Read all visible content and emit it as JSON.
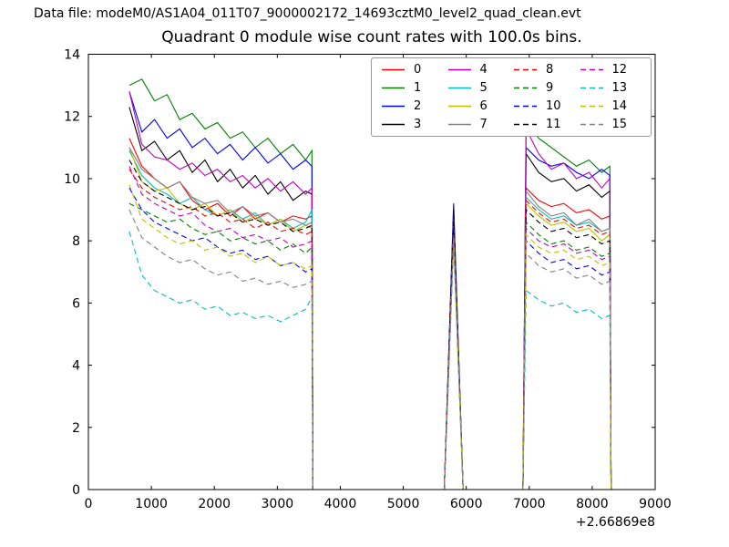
{
  "chart_data": {
    "type": "line",
    "suptitle": "Data file: modeM0/AS1A04_011T07_9000002172_14693cztM0_level2_quad_clean.evt",
    "title": "Quadrant 0 module wise count rates with 100.0s bins.",
    "xlabel": "",
    "ylabel": "",
    "xlim": [
      0,
      9000
    ],
    "ylim": [
      0,
      14
    ],
    "x_ticks": [
      0,
      1000,
      2000,
      3000,
      4000,
      5000,
      6000,
      7000,
      8000,
      9000
    ],
    "y_ticks": [
      0,
      2,
      4,
      6,
      8,
      10,
      12,
      14
    ],
    "x_offset_text": "+2.66869e8",
    "grid": false,
    "legend_position": "upper right inside, 4 columns",
    "bin_seconds": 100.0,
    "segments": {
      "seg1_x": [
        650,
        850,
        1050,
        1250,
        1450,
        1650,
        1850,
        2050,
        2250,
        2450,
        2650,
        2850,
        3050,
        3250,
        3450,
        3550
      ],
      "seg1_drop_x": 3565,
      "peak_x": [
        5650,
        5800,
        5950
      ],
      "seg3_rise_x": 6900,
      "seg3_x": [
        6950,
        7150,
        7350,
        7550,
        7750,
        7950,
        8150,
        8280
      ],
      "seg3_drop_x": 8300,
      "zero_spans": [
        [
          3565,
          5650
        ],
        [
          5950,
          6900
        ]
      ]
    },
    "series": [
      {
        "label": "0",
        "color": "#ff0000",
        "linestyle": "solid",
        "seg1": [
          11.3,
          10.4,
          10.0,
          9.7,
          9.9,
          9.3,
          9.0,
          9.2,
          8.8,
          9.1,
          8.7,
          8.9,
          8.6,
          8.8,
          8.7,
          8.8
        ],
        "peak": 8.7,
        "seg3": [
          9.7,
          9.3,
          9.1,
          9.2,
          8.9,
          9.0,
          8.7,
          8.8
        ]
      },
      {
        "label": "1",
        "color": "#007f00",
        "linestyle": "solid",
        "seg1": [
          13.0,
          13.2,
          12.5,
          12.7,
          11.9,
          12.1,
          11.6,
          11.8,
          11.3,
          11.5,
          11.0,
          11.3,
          10.8,
          11.1,
          10.6,
          10.9
        ],
        "peak": 8.9,
        "seg3": [
          11.8,
          11.3,
          11.0,
          10.7,
          10.4,
          10.6,
          10.2,
          10.4
        ]
      },
      {
        "label": "2",
        "color": "#0000ff",
        "linestyle": "solid",
        "seg1": [
          12.8,
          11.5,
          11.9,
          11.3,
          11.6,
          11.0,
          11.3,
          10.8,
          11.1,
          10.6,
          11.0,
          10.5,
          10.8,
          10.3,
          10.6,
          10.4
        ],
        "peak": 9.2,
        "seg3": [
          11.0,
          10.6,
          10.4,
          10.5,
          10.2,
          10.0,
          10.3,
          10.1
        ]
      },
      {
        "label": "3",
        "color": "#000000",
        "linestyle": "solid",
        "seg1": [
          12.3,
          10.9,
          11.2,
          10.6,
          10.9,
          10.2,
          10.6,
          9.9,
          10.3,
          9.7,
          10.1,
          9.5,
          9.9,
          9.3,
          9.6,
          9.5
        ],
        "peak": 9.0,
        "seg3": [
          10.8,
          10.2,
          9.9,
          10.0,
          9.6,
          9.8,
          9.4,
          9.6
        ]
      },
      {
        "label": "4",
        "color": "#bf00bf",
        "linestyle": "solid",
        "seg1": [
          12.8,
          11.1,
          10.7,
          10.6,
          10.3,
          10.5,
          10.1,
          10.3,
          9.9,
          10.1,
          9.7,
          10.0,
          9.6,
          9.9,
          9.5,
          9.7
        ],
        "peak": 8.8,
        "seg3": [
          11.6,
          10.8,
          10.3,
          10.5,
          10.0,
          10.2,
          9.7,
          10.0
        ]
      },
      {
        "label": "5",
        "color": "#00bfbf",
        "linestyle": "solid",
        "seg1": [
          10.9,
          10.1,
          9.7,
          9.5,
          9.2,
          9.4,
          9.0,
          8.8,
          9.0,
          8.7,
          8.9,
          8.5,
          8.7,
          8.4,
          8.6,
          9.0
        ],
        "peak": 8.6,
        "seg3": [
          9.4,
          9.0,
          8.7,
          8.8,
          8.5,
          8.6,
          8.3,
          8.4
        ]
      },
      {
        "label": "6",
        "color": "#bfbf00",
        "linestyle": "solid",
        "seg1": [
          11.0,
          9.9,
          9.6,
          9.7,
          9.2,
          9.0,
          9.2,
          8.8,
          9.0,
          8.6,
          8.8,
          8.5,
          8.7,
          8.3,
          8.5,
          8.4
        ],
        "peak": 8.5,
        "seg3": [
          9.2,
          8.8,
          8.5,
          8.6,
          8.3,
          8.4,
          8.0,
          8.2
        ]
      },
      {
        "label": "7",
        "color": "#808080",
        "linestyle": "solid",
        "seg1": [
          11.0,
          10.3,
          10.0,
          9.7,
          9.9,
          9.4,
          9.2,
          9.3,
          8.9,
          9.1,
          8.8,
          8.9,
          8.6,
          8.7,
          8.5,
          8.6
        ],
        "peak": 8.7,
        "seg3": [
          9.6,
          9.1,
          8.8,
          8.9,
          8.5,
          8.7,
          8.3,
          8.4
        ]
      },
      {
        "label": "8",
        "color": "#ff0000",
        "linestyle": "dashed",
        "seg1": [
          10.3,
          9.7,
          9.4,
          9.2,
          9.0,
          9.1,
          8.8,
          8.9,
          8.6,
          8.7,
          8.4,
          8.6,
          8.3,
          8.4,
          8.2,
          8.3
        ],
        "peak": 8.4,
        "seg3": [
          9.3,
          8.9,
          8.6,
          8.7,
          8.4,
          8.5,
          8.2,
          8.3
        ]
      },
      {
        "label": "9",
        "color": "#007f00",
        "linestyle": "dashed",
        "seg1": [
          9.2,
          9.0,
          8.8,
          8.6,
          8.7,
          8.4,
          8.2,
          8.3,
          8.0,
          8.1,
          7.9,
          8.0,
          7.7,
          7.9,
          7.6,
          7.8
        ],
        "peak": 8.3,
        "seg3": [
          8.6,
          8.2,
          7.9,
          8.0,
          7.7,
          7.8,
          7.5,
          7.6
        ]
      },
      {
        "label": "10",
        "color": "#0000ff",
        "linestyle": "dashed",
        "seg1": [
          9.7,
          9.0,
          8.6,
          8.4,
          8.2,
          8.0,
          8.1,
          7.8,
          7.6,
          7.7,
          7.4,
          7.5,
          7.2,
          7.3,
          7.0,
          7.1
        ],
        "peak": 8.6,
        "seg3": [
          8.0,
          7.6,
          7.3,
          7.4,
          7.1,
          7.2,
          6.9,
          7.0
        ]
      },
      {
        "label": "11",
        "color": "#000000",
        "linestyle": "dashed",
        "seg1": [
          10.6,
          9.9,
          9.6,
          9.4,
          9.2,
          9.0,
          9.1,
          8.8,
          8.9,
          8.6,
          8.7,
          8.5,
          8.6,
          8.3,
          8.4,
          8.5
        ],
        "peak": 8.8,
        "seg3": [
          9.0,
          8.6,
          8.3,
          8.4,
          8.1,
          8.2,
          7.9,
          8.0
        ]
      },
      {
        "label": "12",
        "color": "#bf00bf",
        "linestyle": "dashed",
        "seg1": [
          10.4,
          9.5,
          9.2,
          9.0,
          8.8,
          8.9,
          8.5,
          8.3,
          8.4,
          8.1,
          8.2,
          8.0,
          8.1,
          7.8,
          7.9,
          8.0
        ],
        "peak": 8.2,
        "seg3": [
          8.4,
          8.0,
          7.8,
          7.9,
          7.6,
          7.7,
          7.4,
          7.5
        ]
      },
      {
        "label": "13",
        "color": "#00bfbf",
        "linestyle": "dashed",
        "seg1": [
          8.3,
          6.9,
          6.4,
          6.2,
          6.0,
          6.1,
          5.8,
          5.9,
          5.6,
          5.7,
          5.5,
          5.6,
          5.4,
          5.6,
          5.8,
          6.2
        ],
        "peak": 7.9,
        "seg3": [
          6.4,
          6.1,
          5.9,
          6.0,
          5.7,
          5.8,
          5.5,
          5.6
        ]
      },
      {
        "label": "14",
        "color": "#bfbf00",
        "linestyle": "dashed",
        "seg1": [
          9.8,
          8.7,
          8.4,
          8.1,
          7.9,
          8.0,
          7.7,
          7.8,
          7.5,
          7.6,
          7.3,
          7.5,
          7.2,
          7.3,
          7.1,
          7.2
        ],
        "peak": 8.1,
        "seg3": [
          8.2,
          7.8,
          7.6,
          7.7,
          7.4,
          7.5,
          7.2,
          7.3
        ]
      },
      {
        "label": "15",
        "color": "#808080",
        "linestyle": "dashed",
        "seg1": [
          9.0,
          8.1,
          7.8,
          7.5,
          7.3,
          7.4,
          7.1,
          6.9,
          7.0,
          6.7,
          6.8,
          6.6,
          6.7,
          6.5,
          6.6,
          6.7
        ],
        "peak": 8.0,
        "seg3": [
          7.6,
          7.2,
          7.0,
          7.1,
          6.8,
          6.9,
          6.6,
          6.7
        ]
      }
    ]
  }
}
